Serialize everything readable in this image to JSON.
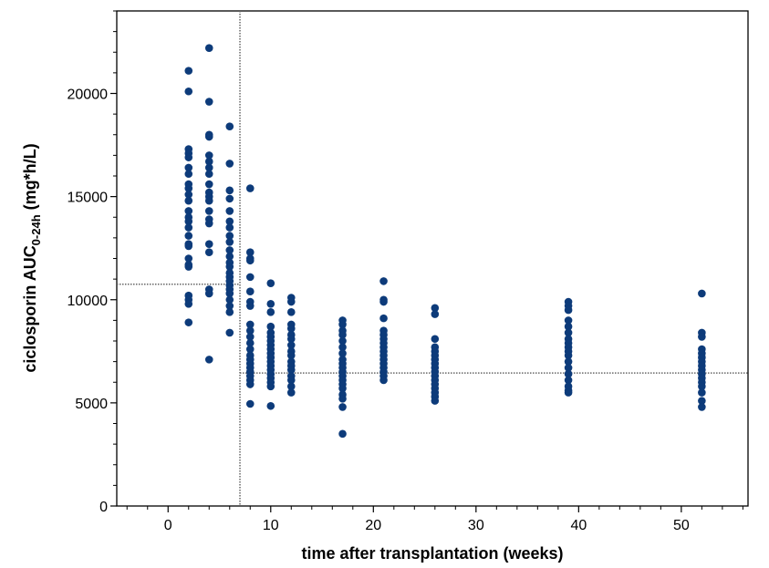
{
  "chart_data": {
    "type": "scatter",
    "title": "",
    "xlabel": "time after transplantation (weeks)",
    "ylabel_main": "ciclosporin AUC",
    "ylabel_sub": "0-24h",
    "ylabel_unit": " (mg*h/L)",
    "xlim": [
      -5,
      56.5
    ],
    "ylim": [
      0,
      24000
    ],
    "xticks": [
      0,
      10,
      20,
      30,
      40,
      50
    ],
    "yticks": [
      0,
      5000,
      10000,
      15000,
      20000
    ],
    "xtick_labels": [
      "0",
      "10",
      "20",
      "30",
      "40",
      "50"
    ],
    "ytick_labels": [
      "0",
      "5000",
      "10000",
      "15000",
      "20000"
    ],
    "grid": false,
    "marker_color": "#0d3b7a",
    "reference_lines": [
      {
        "orientation": "vertical",
        "x": 7,
        "y_range": [
          0,
          24000
        ]
      },
      {
        "orientation": "horizontal",
        "y": 10750,
        "x_range": [
          -5,
          7
        ]
      },
      {
        "orientation": "horizontal",
        "y": 6450,
        "x_range": [
          7,
          56.5
        ]
      }
    ],
    "series": [
      {
        "values": [
          [
            2,
            21100
          ],
          [
            2,
            20100
          ],
          [
            2,
            17300
          ],
          [
            2,
            17100
          ],
          [
            2,
            16900
          ],
          [
            2,
            16400
          ],
          [
            2,
            16100
          ],
          [
            2,
            15600
          ],
          [
            2,
            15400
          ],
          [
            2,
            15100
          ],
          [
            2,
            14800
          ],
          [
            2,
            14300
          ],
          [
            2,
            14000
          ],
          [
            2,
            13800
          ],
          [
            2,
            13500
          ],
          [
            2,
            13100
          ],
          [
            2,
            12700
          ],
          [
            2,
            12600
          ],
          [
            2,
            12000
          ],
          [
            2,
            11700
          ],
          [
            2,
            11600
          ],
          [
            2,
            10200
          ],
          [
            2,
            10000
          ],
          [
            2,
            9800
          ],
          [
            2,
            8900
          ],
          [
            4,
            22200
          ],
          [
            4,
            19600
          ],
          [
            4,
            18000
          ],
          [
            4,
            17900
          ],
          [
            4,
            17000
          ],
          [
            4,
            16700
          ],
          [
            4,
            16400
          ],
          [
            4,
            16100
          ],
          [
            4,
            15600
          ],
          [
            4,
            15200
          ],
          [
            4,
            15000
          ],
          [
            4,
            14800
          ],
          [
            4,
            14300
          ],
          [
            4,
            13900
          ],
          [
            4,
            13700
          ],
          [
            4,
            12700
          ],
          [
            4,
            12300
          ],
          [
            4,
            10500
          ],
          [
            4,
            10300
          ],
          [
            4,
            7100
          ],
          [
            6,
            18400
          ],
          [
            6,
            16600
          ],
          [
            6,
            15300
          ],
          [
            6,
            14900
          ],
          [
            6,
            14300
          ],
          [
            6,
            13800
          ],
          [
            6,
            13500
          ],
          [
            6,
            13100
          ],
          [
            6,
            12800
          ],
          [
            6,
            12400
          ],
          [
            6,
            12100
          ],
          [
            6,
            11800
          ],
          [
            6,
            11600
          ],
          [
            6,
            11300
          ],
          [
            6,
            11100
          ],
          [
            6,
            10900
          ],
          [
            6,
            10700
          ],
          [
            6,
            10500
          ],
          [
            6,
            10300
          ],
          [
            6,
            10000
          ],
          [
            6,
            9700
          ],
          [
            6,
            9400
          ],
          [
            6,
            8400
          ],
          [
            8,
            15400
          ],
          [
            8,
            12300
          ],
          [
            8,
            12000
          ],
          [
            8,
            11900
          ],
          [
            8,
            11100
          ],
          [
            8,
            10400
          ],
          [
            8,
            9900
          ],
          [
            8,
            9700
          ],
          [
            8,
            8800
          ],
          [
            8,
            8500
          ],
          [
            8,
            8200
          ],
          [
            8,
            7900
          ],
          [
            8,
            7600
          ],
          [
            8,
            7300
          ],
          [
            8,
            7100
          ],
          [
            8,
            6900
          ],
          [
            8,
            6700
          ],
          [
            8,
            6500
          ],
          [
            8,
            6300
          ],
          [
            8,
            6100
          ],
          [
            8,
            5900
          ],
          [
            8,
            4950
          ],
          [
            10,
            10800
          ],
          [
            10,
            9800
          ],
          [
            10,
            9400
          ],
          [
            10,
            8700
          ],
          [
            10,
            8400
          ],
          [
            10,
            8200
          ],
          [
            10,
            8000
          ],
          [
            10,
            7800
          ],
          [
            10,
            7600
          ],
          [
            10,
            7400
          ],
          [
            10,
            7200
          ],
          [
            10,
            7000
          ],
          [
            10,
            6800
          ],
          [
            10,
            6600
          ],
          [
            10,
            6400
          ],
          [
            10,
            6200
          ],
          [
            10,
            6000
          ],
          [
            10,
            5800
          ],
          [
            10,
            4850
          ],
          [
            12,
            10100
          ],
          [
            12,
            9900
          ],
          [
            12,
            9400
          ],
          [
            12,
            8800
          ],
          [
            12,
            8600
          ],
          [
            12,
            8300
          ],
          [
            12,
            8100
          ],
          [
            12,
            7800
          ],
          [
            12,
            7500
          ],
          [
            12,
            7300
          ],
          [
            12,
            7000
          ],
          [
            12,
            6800
          ],
          [
            12,
            6600
          ],
          [
            12,
            6300
          ],
          [
            12,
            6100
          ],
          [
            12,
            5800
          ],
          [
            12,
            5500
          ],
          [
            17,
            9000
          ],
          [
            17,
            8800
          ],
          [
            17,
            8500
          ],
          [
            17,
            8300
          ],
          [
            17,
            8000
          ],
          [
            17,
            7700
          ],
          [
            17,
            7400
          ],
          [
            17,
            7100
          ],
          [
            17,
            6900
          ],
          [
            17,
            6700
          ],
          [
            17,
            6500
          ],
          [
            17,
            6300
          ],
          [
            17,
            6100
          ],
          [
            17,
            5900
          ],
          [
            17,
            5700
          ],
          [
            17,
            5400
          ],
          [
            17,
            5200
          ],
          [
            17,
            4800
          ],
          [
            17,
            3500
          ],
          [
            21,
            10900
          ],
          [
            21,
            10000
          ],
          [
            21,
            9900
          ],
          [
            21,
            9100
          ],
          [
            21,
            8500
          ],
          [
            21,
            8300
          ],
          [
            21,
            8100
          ],
          [
            21,
            7900
          ],
          [
            21,
            7700
          ],
          [
            21,
            7500
          ],
          [
            21,
            7300
          ],
          [
            21,
            7100
          ],
          [
            21,
            6900
          ],
          [
            21,
            6700
          ],
          [
            21,
            6500
          ],
          [
            21,
            6300
          ],
          [
            21,
            6100
          ],
          [
            26,
            9600
          ],
          [
            26,
            9300
          ],
          [
            26,
            8100
          ],
          [
            26,
            7700
          ],
          [
            26,
            7500
          ],
          [
            26,
            7300
          ],
          [
            26,
            7100
          ],
          [
            26,
            6900
          ],
          [
            26,
            6700
          ],
          [
            26,
            6500
          ],
          [
            26,
            6300
          ],
          [
            26,
            6100
          ],
          [
            26,
            5900
          ],
          [
            26,
            5700
          ],
          [
            26,
            5500
          ],
          [
            26,
            5300
          ],
          [
            26,
            5100
          ],
          [
            39,
            9900
          ],
          [
            39,
            9700
          ],
          [
            39,
            9500
          ],
          [
            39,
            9000
          ],
          [
            39,
            8700
          ],
          [
            39,
            8400
          ],
          [
            39,
            8100
          ],
          [
            39,
            7900
          ],
          [
            39,
            7700
          ],
          [
            39,
            7500
          ],
          [
            39,
            7300
          ],
          [
            39,
            7000
          ],
          [
            39,
            6700
          ],
          [
            39,
            6400
          ],
          [
            39,
            6100
          ],
          [
            39,
            5800
          ],
          [
            39,
            5600
          ],
          [
            39,
            5500
          ],
          [
            52,
            10300
          ],
          [
            52,
            8400
          ],
          [
            52,
            8200
          ],
          [
            52,
            7600
          ],
          [
            52,
            7400
          ],
          [
            52,
            7200
          ],
          [
            52,
            7000
          ],
          [
            52,
            6800
          ],
          [
            52,
            6600
          ],
          [
            52,
            6400
          ],
          [
            52,
            6200
          ],
          [
            52,
            6000
          ],
          [
            52,
            5800
          ],
          [
            52,
            5500
          ],
          [
            52,
            5100
          ],
          [
            52,
            4800
          ]
        ]
      }
    ]
  }
}
